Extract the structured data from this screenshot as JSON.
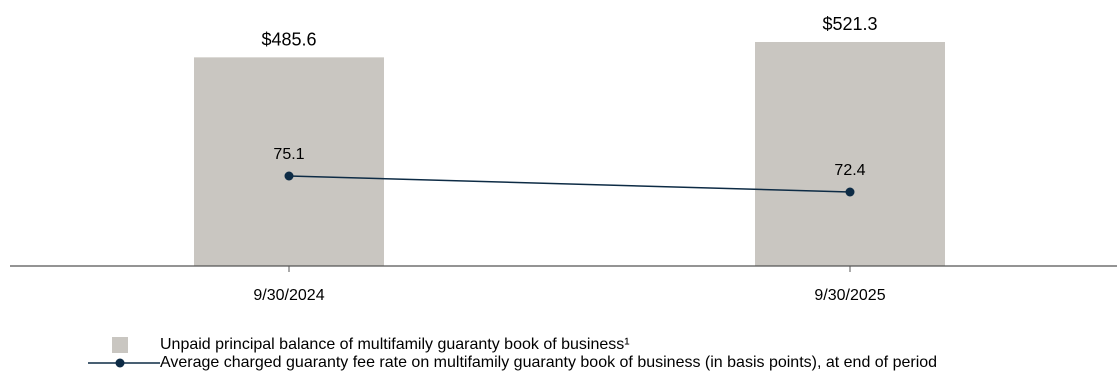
{
  "chart_data": {
    "type": "bar",
    "categories": [
      "9/30/2024",
      "9/30/2025"
    ],
    "series": [
      {
        "name": "Unpaid principal balance of multifamily guaranty book of business¹",
        "kind": "bar",
        "values": [
          485.6,
          521.3
        ],
        "labels": [
          "$485.6",
          "$521.3"
        ],
        "color": "#c9c6c1"
      },
      {
        "name": "Average charged guaranty fee rate on multifamily guaranty book of business (in basis points), at end of period",
        "kind": "line",
        "values": [
          75.1,
          72.4
        ],
        "labels": [
          "75.1",
          "72.4"
        ],
        "color": "#0d2b45"
      }
    ],
    "grid": false,
    "legend_position": "bottom"
  }
}
